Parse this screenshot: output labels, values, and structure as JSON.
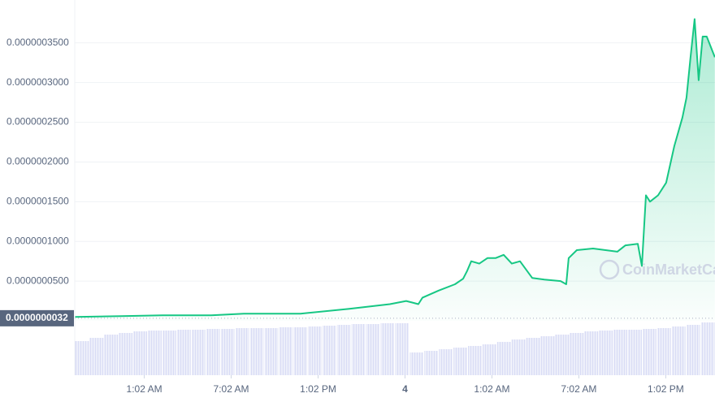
{
  "chart_data": {
    "type": "line",
    "x": [
      0,
      3.25,
      6.06,
      9.42,
      11.67,
      15.59,
      18.96,
      21.76,
      22.88,
      23.72,
      24.0,
      25.12,
      26.25,
      26.81,
      27.09,
      27.37,
      27.93,
      28.49,
      29.05,
      29.61,
      30.17,
      30.74,
      31.58,
      32.42,
      33.54,
      33.93,
      34.1,
      34.66,
      35.78,
      37.46,
      38.02,
      38.87,
      39.15,
      39.43,
      39.71,
      40.27,
      40.83,
      41.39,
      41.95,
      42.23,
      42.51,
      42.79,
      43.07,
      43.35,
      43.63,
      44.19
    ],
    "series": [
      {
        "color": "#16c784",
        "values": [
          4.9e-09,
          5.9e-09,
          7e-09,
          7e-09,
          9e-09,
          9e-09,
          1.5e-08,
          2.1e-08,
          2.5e-08,
          2.1e-08,
          2.9e-08,
          3.8e-08,
          4.6e-08,
          5.3e-08,
          6.3e-08,
          7.5e-08,
          7.2e-08,
          7.9e-08,
          7.9e-08,
          8.3e-08,
          7.2e-08,
          7.5e-08,
          5.4e-08,
          5.2e-08,
          5e-08,
          4.6e-08,
          7.9e-08,
          8.9e-08,
          9.1e-08,
          8.7e-08,
          9.5e-08,
          9.7e-08,
          6.9e-08,
          1.58e-07,
          1.5e-07,
          1.58e-07,
          1.74e-07,
          2.2e-07,
          2.56e-07,
          2.81e-07,
          3.32e-07,
          3.8e-07,
          3.03e-07,
          3.58e-07,
          3.58e-07,
          3.32e-07
        ]
      }
    ],
    "volume": {
      "color": "#cfd3f2",
      "values": [
        42,
        46,
        50,
        52,
        54,
        55,
        55,
        56,
        56,
        57,
        57,
        58,
        58,
        58,
        59,
        59,
        60,
        61,
        62,
        63,
        63,
        64,
        64,
        28,
        30,
        32,
        34,
        36,
        38,
        41,
        44,
        46,
        48,
        50,
        52,
        54,
        55,
        56,
        56,
        57,
        58,
        60,
        62,
        65
      ]
    },
    "xlim": [
      0,
      44.2
    ],
    "xticks": [
      {
        "value": 4.8,
        "label": "1:02 AM"
      },
      {
        "value": 10.8,
        "label": "7:02 AM"
      },
      {
        "value": 16.8,
        "label": "1:02 PM"
      },
      {
        "value": 22.8,
        "label": "4"
      },
      {
        "value": 28.8,
        "label": "1:02 AM"
      },
      {
        "value": 34.8,
        "label": "7:02 AM"
      },
      {
        "value": 40.8,
        "label": "1:02 PM"
      }
    ],
    "ylim": [
      0,
      4.04e-07
    ],
    "yticks": [
      {
        "value": 5e-08,
        "label": "0.0000000500"
      },
      {
        "value": 1e-07,
        "label": "0.0000001000"
      },
      {
        "value": 1.5e-07,
        "label": "0.0000001500"
      },
      {
        "value": 2e-07,
        "label": "0.0000002000"
      },
      {
        "value": 2.5e-07,
        "label": "0.0000002500"
      },
      {
        "value": 3e-07,
        "label": "0.0000003000"
      },
      {
        "value": 3.5e-07,
        "label": "0.0000003500"
      }
    ],
    "current_price": {
      "value": 3.2e-09,
      "label": "0.0000000032"
    },
    "watermark": "CoinMarketCap",
    "grid": true
  }
}
